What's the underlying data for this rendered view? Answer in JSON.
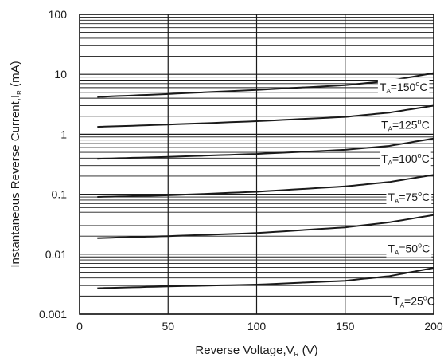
{
  "chart_data": {
    "type": "line",
    "title": "",
    "xlabel": {
      "main": "Reverse Voltage,V",
      "sub": "R",
      "tail": " (V)"
    },
    "ylabel": {
      "main": "Instantaneous Reverse Current,I",
      "sub": "R",
      "tail": " (mA)"
    },
    "x_scale": "linear",
    "y_scale": "log",
    "xlim": [
      0,
      200
    ],
    "ylim": [
      0.001,
      100
    ],
    "grid": true,
    "x_ticks": [
      {
        "value": 0,
        "label": "0"
      },
      {
        "value": 50,
        "label": "50"
      },
      {
        "value": 100,
        "label": "100"
      },
      {
        "value": 150,
        "label": "150"
      },
      {
        "value": 200,
        "label": "200"
      }
    ],
    "y_ticks": [
      {
        "value": 0.001,
        "label": "0.001"
      },
      {
        "value": 0.01,
        "label": "0.01"
      },
      {
        "value": 0.1,
        "label": "0.1"
      },
      {
        "value": 1,
        "label": "1"
      },
      {
        "value": 10,
        "label": "10"
      },
      {
        "value": 100,
        "label": "100"
      }
    ],
    "series": [
      {
        "name": "TA=150°C",
        "label_parts": {
          "t": "T",
          "sub": "A",
          "mid": "=150",
          "sup": "o",
          "unit": "C"
        },
        "label_at": {
          "x": 183,
          "y": 6.2
        },
        "color": "#1a1a1a",
        "x": [
          10,
          50,
          100,
          150,
          175,
          200
        ],
        "y": [
          4.2,
          4.7,
          5.5,
          6.6,
          7.8,
          10.5
        ]
      },
      {
        "name": "TA=125°C",
        "label_parts": {
          "t": "T",
          "sub": "A",
          "mid": "=125",
          "sup": "o",
          "unit": "C"
        },
        "label_at": {
          "x": 184,
          "y": 1.45
        },
        "color": "#1a1a1a",
        "x": [
          10,
          50,
          100,
          150,
          175,
          200
        ],
        "y": [
          1.33,
          1.45,
          1.65,
          1.95,
          2.3,
          3.0
        ]
      },
      {
        "name": "TA=100°C",
        "label_parts": {
          "t": "T",
          "sub": "A",
          "mid": "=100",
          "sup": "o",
          "unit": "C"
        },
        "label_at": {
          "x": 184,
          "y": 0.39
        },
        "color": "#1a1a1a",
        "x": [
          10,
          50,
          100,
          150,
          175,
          200
        ],
        "y": [
          0.39,
          0.42,
          0.47,
          0.55,
          0.64,
          0.85
        ]
      },
      {
        "name": "TA=75°C",
        "label_parts": {
          "t": "T",
          "sub": "A",
          "mid": "=75",
          "sup": "o",
          "unit": "C"
        },
        "label_at": {
          "x": 186,
          "y": 0.09
        },
        "color": "#1a1a1a",
        "x": [
          10,
          50,
          100,
          150,
          175,
          200
        ],
        "y": [
          0.09,
          0.096,
          0.11,
          0.135,
          0.16,
          0.21
        ]
      },
      {
        "name": "TA=50°C",
        "label_parts": {
          "t": "T",
          "sub": "A",
          "mid": "=50",
          "sup": "o",
          "unit": "C"
        },
        "label_at": {
          "x": 186,
          "y": 0.0125
        },
        "color": "#1a1a1a",
        "x": [
          10,
          50,
          100,
          150,
          175,
          200
        ],
        "y": [
          0.0185,
          0.02,
          0.0225,
          0.028,
          0.034,
          0.045
        ]
      },
      {
        "name": "TA=25°C",
        "label_parts": {
          "t": "T",
          "sub": "A",
          "mid": "=25",
          "sup": "o",
          "unit": "C"
        },
        "label_at": {
          "x": 189,
          "y": 0.00165
        },
        "color": "#1a1a1a",
        "x": [
          10,
          50,
          100,
          150,
          175,
          200
        ],
        "y": [
          0.0027,
          0.0029,
          0.0031,
          0.0036,
          0.0043,
          0.0059
        ]
      }
    ]
  }
}
